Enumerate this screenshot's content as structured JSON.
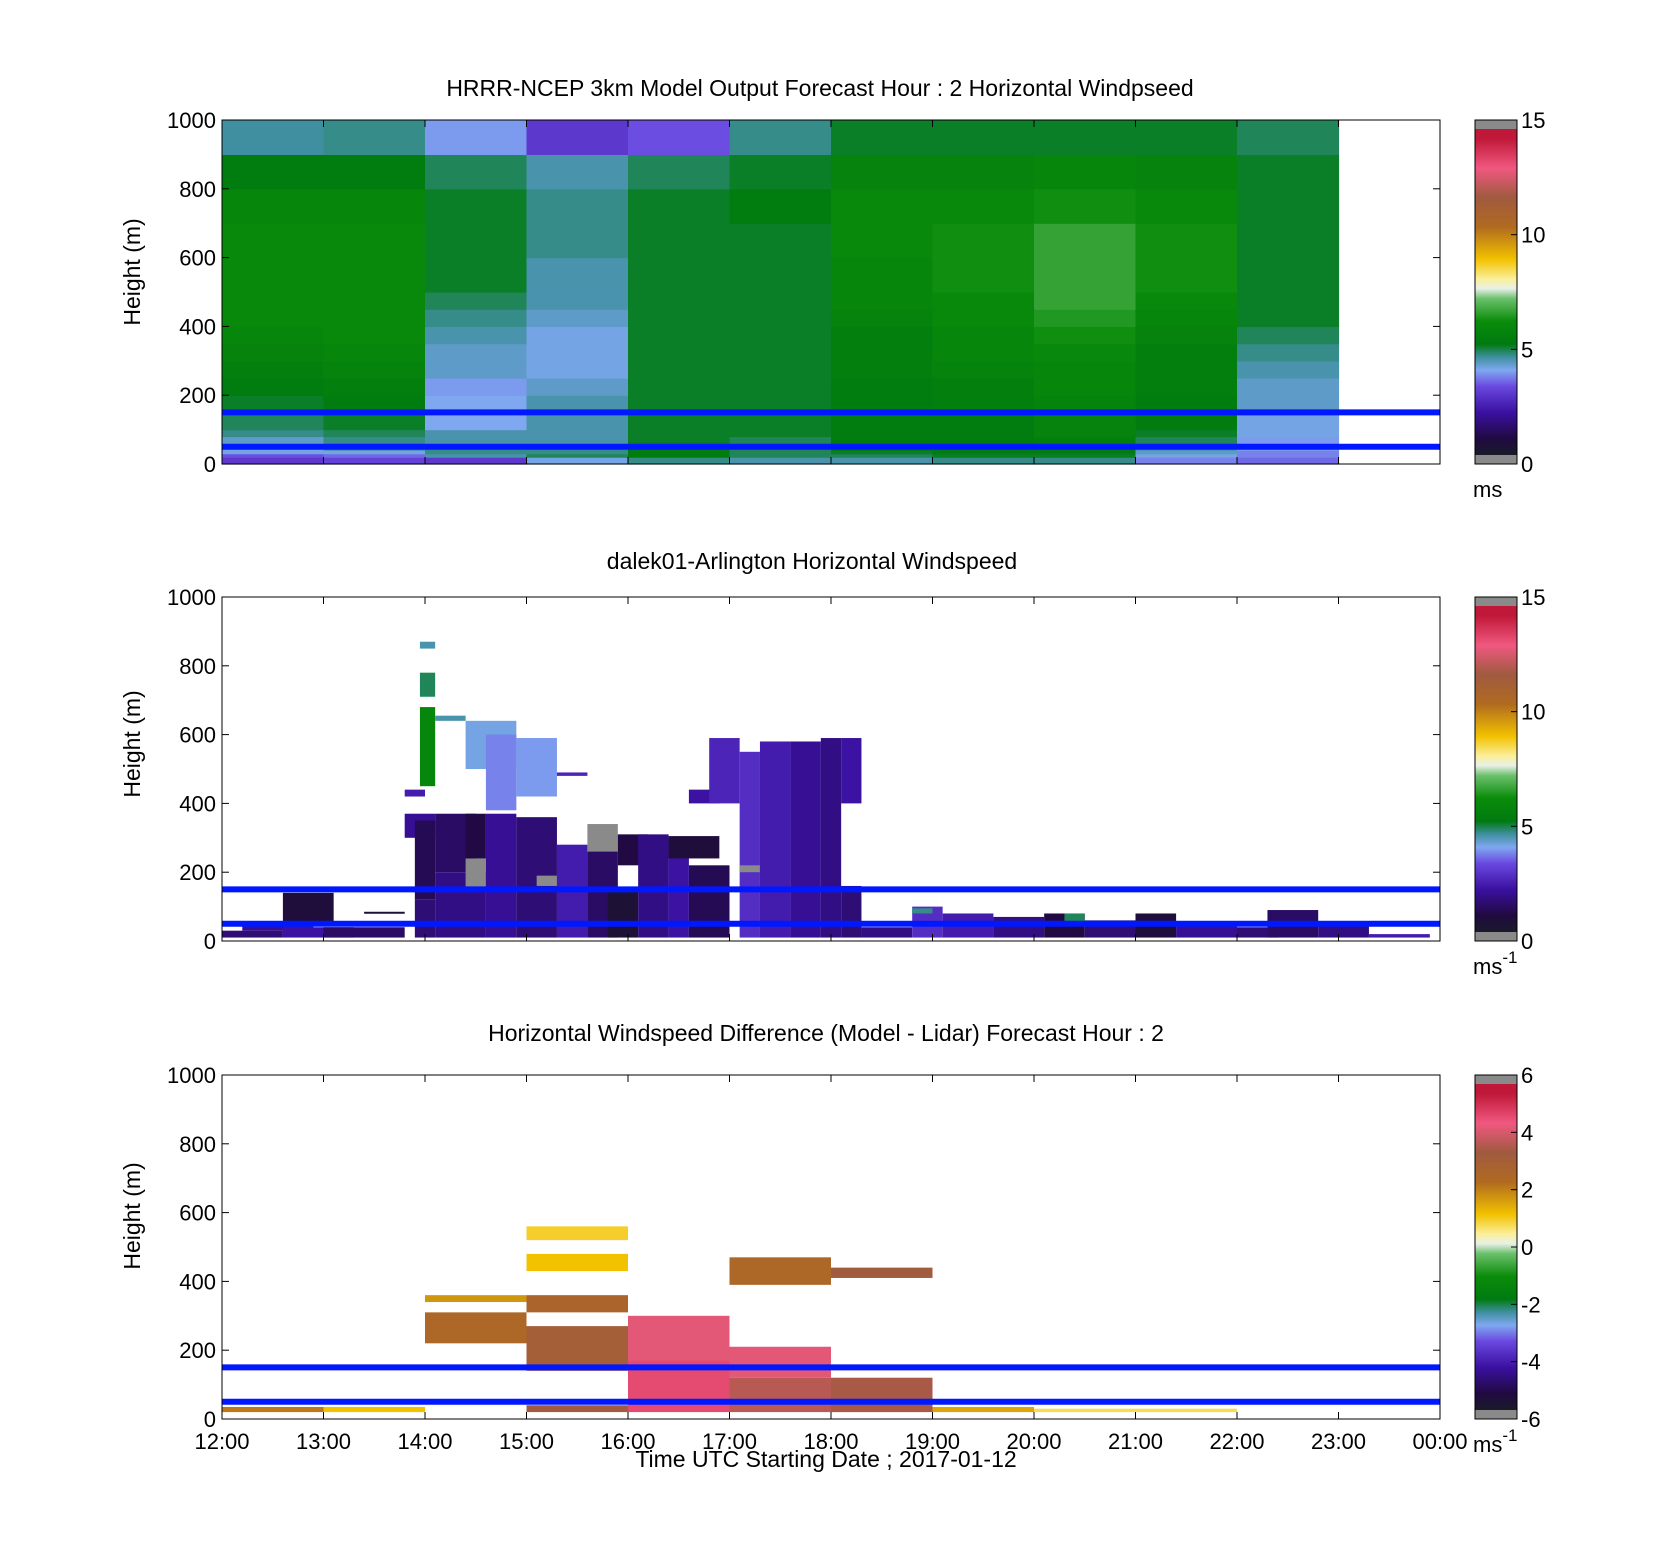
{
  "colors": {
    "reference_lines": "#0018ff",
    "colormap": [
      [
        0.0,
        "#1a1a2a"
      ],
      [
        0.05,
        "#200a40"
      ],
      [
        0.13,
        "#3a10a0"
      ],
      [
        0.21,
        "#6a48e0"
      ],
      [
        0.26,
        "#7fa8f0"
      ],
      [
        0.3,
        "#3f8fa0"
      ],
      [
        0.34,
        "#007a10"
      ],
      [
        0.41,
        "#0a8c0a"
      ],
      [
        0.48,
        "#6cc06c"
      ],
      [
        0.51,
        "#e8f0e8"
      ],
      [
        0.54,
        "#fbef9a"
      ],
      [
        0.6,
        "#f2c200"
      ],
      [
        0.7,
        "#b06a20"
      ],
      [
        0.79,
        "#a05a40"
      ],
      [
        0.88,
        "#f05880"
      ],
      [
        0.97,
        "#c01838"
      ]
    ],
    "missing": "#8a8a8a"
  },
  "chart_data": [
    {
      "type": "heatmap",
      "title": "HRRR-NCEP 3km Model Output   Forecast Hour : 2 Horizontal Windpseed",
      "xlabel": "",
      "ylabel": "Height (m)",
      "xlim": [
        12,
        24
      ],
      "ylim": [
        0,
        1000
      ],
      "yticks": [
        0,
        200,
        400,
        600,
        800,
        1000
      ],
      "colorbar": {
        "range": [
          0,
          15
        ],
        "ticks": [
          "0",
          "5",
          "10",
          "15"
        ],
        "tick_values": [
          0,
          5,
          10,
          15
        ],
        "unit": "ms",
        "unit_sup": ""
      },
      "reference_lines_m": [
        150,
        50
      ],
      "heights_m": [
        0,
        20,
        30,
        40,
        60,
        80,
        100,
        150,
        200,
        250,
        300,
        350,
        400,
        450,
        500,
        600,
        700,
        800,
        900,
        1000
      ],
      "hour_columns": [
        12,
        13,
        14,
        15,
        16,
        17,
        18,
        19,
        20,
        21,
        22
      ],
      "windspeed_ms": [
        [
          2.8,
          3.2,
          4.0,
          4.0,
          4.2,
          4.6,
          4.8,
          5.0,
          5.2,
          5.4,
          5.6,
          5.8,
          6.0,
          6.0,
          6.0,
          6.0,
          5.8,
          5.2,
          4.5
        ],
        [
          3.0,
          3.4,
          4.0,
          4.4,
          4.6,
          4.8,
          5.0,
          5.2,
          5.4,
          5.6,
          5.8,
          6.0,
          6.0,
          6.0,
          6.0,
          6.0,
          5.8,
          5.2,
          4.6
        ],
        [
          2.8,
          4.4,
          4.6,
          4.6,
          4.4,
          4.4,
          3.9,
          3.9,
          3.8,
          4.2,
          4.2,
          4.4,
          4.6,
          4.8,
          5.0,
          5.0,
          5.0,
          4.8,
          3.8
        ],
        [
          4.0,
          4.8,
          4.6,
          4.6,
          4.4,
          4.4,
          4.4,
          4.4,
          4.2,
          4.0,
          4.0,
          4.0,
          4.2,
          4.4,
          4.4,
          4.6,
          4.6,
          4.4,
          2.8
        ],
        [
          4.6,
          5.2,
          5.2,
          5.2,
          5.0,
          5.0,
          5.0,
          5.0,
          5.0,
          5.0,
          5.0,
          5.0,
          5.0,
          5.0,
          5.0,
          5.0,
          5.0,
          4.8,
          3.2
        ],
        [
          4.4,
          4.8,
          4.8,
          4.8,
          4.8,
          5.0,
          5.0,
          5.0,
          5.0,
          5.0,
          5.0,
          5.0,
          5.0,
          5.0,
          5.0,
          5.0,
          5.2,
          5.0,
          4.6
        ],
        [
          4.4,
          4.8,
          5.0,
          5.2,
          5.2,
          5.2,
          5.2,
          5.2,
          5.2,
          5.4,
          5.4,
          5.4,
          5.6,
          5.8,
          5.8,
          6.0,
          6.0,
          5.6,
          5.0
        ],
        [
          4.6,
          5.0,
          5.2,
          5.2,
          5.2,
          5.2,
          5.2,
          5.4,
          5.4,
          5.6,
          5.8,
          5.8,
          6.0,
          6.0,
          6.2,
          6.2,
          6.0,
          5.6,
          5.0
        ],
        [
          4.6,
          5.0,
          5.2,
          5.2,
          5.4,
          5.6,
          5.6,
          5.6,
          5.8,
          5.8,
          6.0,
          6.2,
          6.4,
          6.6,
          6.6,
          6.6,
          6.2,
          5.8,
          5.0
        ],
        [
          3.6,
          4.0,
          4.2,
          4.4,
          4.8,
          5.0,
          5.2,
          5.2,
          5.4,
          5.4,
          5.4,
          5.6,
          5.8,
          6.0,
          6.2,
          6.2,
          6.0,
          5.6,
          5.0
        ],
        [
          3.4,
          3.6,
          3.6,
          3.8,
          3.8,
          4.0,
          4.0,
          4.2,
          4.2,
          4.4,
          4.6,
          4.8,
          5.0,
          5.0,
          5.0,
          5.0,
          5.0,
          5.0,
          4.8
        ]
      ]
    },
    {
      "type": "heatmap",
      "title": "dalek01-Arlington  Horizontal Windspeed",
      "xlabel": "",
      "ylabel": "Height (m)",
      "xlim": [
        12,
        24
      ],
      "ylim": [
        0,
        1000
      ],
      "yticks": [
        0,
        200,
        400,
        600,
        800,
        1000
      ],
      "colorbar": {
        "range": [
          0,
          15
        ],
        "ticks": [
          "0",
          "5",
          "10",
          "15"
        ],
        "tick_values": [
          0,
          5,
          10,
          15
        ],
        "unit": "ms",
        "unit_sup": "-1"
      },
      "reference_lines_m": [
        150,
        50
      ],
      "segments": [
        {
          "t0": 12.0,
          "t1": 12.6,
          "h0": 10,
          "h1": 30,
          "v": 1.4
        },
        {
          "t0": 12.2,
          "t1": 12.9,
          "h0": 30,
          "h1": 50,
          "v": 1.8
        },
        {
          "t0": 12.6,
          "t1": 13.1,
          "h0": 50,
          "h1": 140,
          "v": 0.6
        },
        {
          "t0": 12.6,
          "t1": 13.3,
          "h0": 10,
          "h1": 40,
          "v": 2.0
        },
        {
          "t0": 13.0,
          "t1": 13.8,
          "h0": 10,
          "h1": 40,
          "v": 1.2
        },
        {
          "t0": 13.4,
          "t1": 13.8,
          "h0": 80,
          "h1": 85,
          "v": 0.4
        },
        {
          "t0": 13.8,
          "t1": 14.1,
          "h0": 370,
          "h1": 300,
          "v": 1.8
        },
        {
          "t0": 13.8,
          "t1": 14.0,
          "h0": 420,
          "h1": 440,
          "v": 2.2
        },
        {
          "t0": 13.9,
          "t1": 14.1,
          "h0": 120,
          "h1": 350,
          "v": 1.0
        },
        {
          "t0": 13.95,
          "t1": 14.1,
          "h0": 450,
          "h1": 680,
          "v": 5.8
        },
        {
          "t0": 13.95,
          "t1": 14.1,
          "h0": 710,
          "h1": 780,
          "v": 4.8
        },
        {
          "t0": 13.95,
          "t1": 14.1,
          "h0": 850,
          "h1": 870,
          "v": 4.4
        },
        {
          "t0": 13.9,
          "t1": 14.1,
          "h0": 10,
          "h1": 120,
          "v": 1.4
        },
        {
          "t0": 14.1,
          "t1": 14.5,
          "h0": 200,
          "h1": 370,
          "v": 1.2
        },
        {
          "t0": 14.1,
          "t1": 14.4,
          "h0": 640,
          "h1": 655,
          "v": 4.4
        },
        {
          "t0": 14.1,
          "t1": 14.6,
          "h0": 10,
          "h1": 200,
          "v": 1.6
        },
        {
          "t0": 14.4,
          "t1": 14.6,
          "h0": 150,
          "h1": 240,
          "v": 15.5
        },
        {
          "t0": 14.4,
          "t1": 14.9,
          "h0": 500,
          "h1": 640,
          "v": 4.0
        },
        {
          "t0": 14.4,
          "t1": 14.6,
          "h0": 240,
          "h1": 370,
          "v": 0.8
        },
        {
          "t0": 14.6,
          "t1": 14.9,
          "h0": 380,
          "h1": 600,
          "v": 3.6
        },
        {
          "t0": 14.6,
          "t1": 14.9,
          "h0": 10,
          "h1": 370,
          "v": 1.8
        },
        {
          "t0": 14.9,
          "t1": 15.3,
          "h0": 420,
          "h1": 590,
          "v": 3.8
        },
        {
          "t0": 14.9,
          "t1": 15.3,
          "h0": 10,
          "h1": 360,
          "v": 1.4
        },
        {
          "t0": 15.1,
          "t1": 15.3,
          "h0": 160,
          "h1": 190,
          "v": 15.5
        },
        {
          "t0": 15.3,
          "t1": 15.6,
          "h0": 10,
          "h1": 280,
          "v": 2.2
        },
        {
          "t0": 15.3,
          "t1": 15.6,
          "h0": 480,
          "h1": 490,
          "v": 2.4
        },
        {
          "t0": 15.6,
          "t1": 15.9,
          "h0": 260,
          "h1": 340,
          "v": 15.5
        },
        {
          "t0": 15.6,
          "t1": 15.9,
          "h0": 10,
          "h1": 260,
          "v": 1.2
        },
        {
          "t0": 15.8,
          "t1": 16.1,
          "h0": 10,
          "h1": 150,
          "v": 0.4
        },
        {
          "t0": 15.9,
          "t1": 16.2,
          "h0": 220,
          "h1": 310,
          "v": 0.8
        },
        {
          "t0": 16.1,
          "t1": 16.4,
          "h0": 10,
          "h1": 310,
          "v": 1.6
        },
        {
          "t0": 16.4,
          "t1": 16.6,
          "h0": 10,
          "h1": 300,
          "v": 2.0
        },
        {
          "t0": 16.4,
          "t1": 16.9,
          "h0": 240,
          "h1": 305,
          "v": 0.6
        },
        {
          "t0": 16.6,
          "t1": 17.0,
          "h0": 10,
          "h1": 220,
          "v": 1.0
        },
        {
          "t0": 16.6,
          "t1": 16.9,
          "h0": 400,
          "h1": 440,
          "v": 2.0
        },
        {
          "t0": 16.8,
          "t1": 17.1,
          "h0": 400,
          "h1": 590,
          "v": 2.4
        },
        {
          "t0": 17.1,
          "t1": 17.3,
          "h0": 10,
          "h1": 550,
          "v": 2.6
        },
        {
          "t0": 17.1,
          "t1": 17.3,
          "h0": 200,
          "h1": 220,
          "v": 15.5
        },
        {
          "t0": 17.3,
          "t1": 17.6,
          "h0": 10,
          "h1": 580,
          "v": 2.2
        },
        {
          "t0": 17.6,
          "t1": 17.9,
          "h0": 10,
          "h1": 580,
          "v": 1.8
        },
        {
          "t0": 17.9,
          "t1": 18.1,
          "h0": 10,
          "h1": 590,
          "v": 1.6
        },
        {
          "t0": 18.1,
          "t1": 18.3,
          "h0": 10,
          "h1": 160,
          "v": 1.4
        },
        {
          "t0": 18.1,
          "t1": 18.3,
          "h0": 400,
          "h1": 590,
          "v": 2.0
        },
        {
          "t0": 18.3,
          "t1": 18.8,
          "h0": 10,
          "h1": 40,
          "v": 1.6
        },
        {
          "t0": 18.8,
          "t1": 19.1,
          "h0": 10,
          "h1": 100,
          "v": 2.6
        },
        {
          "t0": 18.8,
          "t1": 19.0,
          "h0": 80,
          "h1": 95,
          "v": 4.6
        },
        {
          "t0": 19.1,
          "t1": 19.6,
          "h0": 10,
          "h1": 80,
          "v": 2.2
        },
        {
          "t0": 19.6,
          "t1": 20.1,
          "h0": 10,
          "h1": 70,
          "v": 1.6
        },
        {
          "t0": 20.1,
          "t1": 20.5,
          "h0": 10,
          "h1": 80,
          "v": 0.8
        },
        {
          "t0": 20.3,
          "t1": 20.5,
          "h0": 50,
          "h1": 80,
          "v": 4.8
        },
        {
          "t0": 20.5,
          "t1": 21.0,
          "h0": 10,
          "h1": 60,
          "v": 1.4
        },
        {
          "t0": 21.0,
          "t1": 21.4,
          "h0": 10,
          "h1": 80,
          "v": 0.6
        },
        {
          "t0": 21.4,
          "t1": 22.0,
          "h0": 10,
          "h1": 50,
          "v": 1.8
        },
        {
          "t0": 22.0,
          "t1": 22.4,
          "h0": 10,
          "h1": 40,
          "v": 1.4
        },
        {
          "t0": 22.3,
          "t1": 22.8,
          "h0": 10,
          "h1": 90,
          "v": 1.2
        },
        {
          "t0": 22.8,
          "t1": 23.3,
          "h0": 10,
          "h1": 50,
          "v": 1.6
        },
        {
          "t0": 23.3,
          "t1": 23.9,
          "h0": 10,
          "h1": 20,
          "v": 2.2
        }
      ]
    },
    {
      "type": "heatmap",
      "title": "Horizontal Windspeed Difference (Model - Lidar) Forecast Hour : 2",
      "xlabel": "Time UTC  Starting Date ; 2017-01-12",
      "ylabel": "Height (m)",
      "xlim": [
        12,
        24
      ],
      "xticks": [
        "12:00",
        "13:00",
        "14:00",
        "15:00",
        "16:00",
        "17:00",
        "18:00",
        "19:00",
        "20:00",
        "21:00",
        "22:00",
        "23:00",
        "00:00"
      ],
      "ylim": [
        0,
        1000
      ],
      "yticks": [
        0,
        200,
        400,
        600,
        800,
        1000
      ],
      "colorbar": {
        "range": [
          -6,
          6
        ],
        "ticks": [
          "-6",
          "-4",
          "-2",
          "0",
          "2",
          "4",
          "6"
        ],
        "tick_values": [
          -6,
          -4,
          -2,
          0,
          2,
          4,
          6
        ],
        "unit": "ms",
        "unit_sup": "-1"
      },
      "reference_lines_m": [
        150,
        50
      ],
      "segments": [
        {
          "t0": 12.0,
          "t1": 13.0,
          "h0": 20,
          "h1": 35,
          "v": 2.2
        },
        {
          "t0": 13.0,
          "t1": 14.0,
          "h0": 20,
          "h1": 35,
          "v": 1.2
        },
        {
          "t0": 14.0,
          "t1": 15.0,
          "h0": 340,
          "h1": 360,
          "v": 1.8
        },
        {
          "t0": 14.0,
          "t1": 15.0,
          "h0": 220,
          "h1": 310,
          "v": 2.6
        },
        {
          "t0": 15.0,
          "t1": 16.0,
          "h0": 520,
          "h1": 560,
          "v": 1.0
        },
        {
          "t0": 15.0,
          "t1": 16.0,
          "h0": 430,
          "h1": 480,
          "v": 1.2
        },
        {
          "t0": 15.0,
          "t1": 16.0,
          "h0": 310,
          "h1": 360,
          "v": 2.8
        },
        {
          "t0": 15.0,
          "t1": 16.0,
          "h0": 140,
          "h1": 270,
          "v": 3.2
        },
        {
          "t0": 15.0,
          "t1": 16.0,
          "h0": 20,
          "h1": 40,
          "v": 3.4
        },
        {
          "t0": 16.0,
          "t1": 17.0,
          "h0": 170,
          "h1": 300,
          "v": 4.4
        },
        {
          "t0": 16.0,
          "t1": 17.0,
          "h0": 20,
          "h1": 170,
          "v": 4.8
        },
        {
          "t0": 17.0,
          "t1": 18.0,
          "h0": 390,
          "h1": 470,
          "v": 2.6
        },
        {
          "t0": 17.0,
          "t1": 18.0,
          "h0": 120,
          "h1": 210,
          "v": 4.4
        },
        {
          "t0": 17.0,
          "t1": 18.0,
          "h0": 20,
          "h1": 120,
          "v": 3.8
        },
        {
          "t0": 18.0,
          "t1": 19.0,
          "h0": 410,
          "h1": 440,
          "v": 3.4
        },
        {
          "t0": 18.0,
          "t1": 19.0,
          "h0": 20,
          "h1": 120,
          "v": 3.6
        },
        {
          "t0": 19.0,
          "t1": 20.0,
          "h0": 20,
          "h1": 35,
          "v": 1.6
        },
        {
          "t0": 20.0,
          "t1": 22.0,
          "h0": 20,
          "h1": 30,
          "v": 0.8
        }
      ]
    }
  ]
}
